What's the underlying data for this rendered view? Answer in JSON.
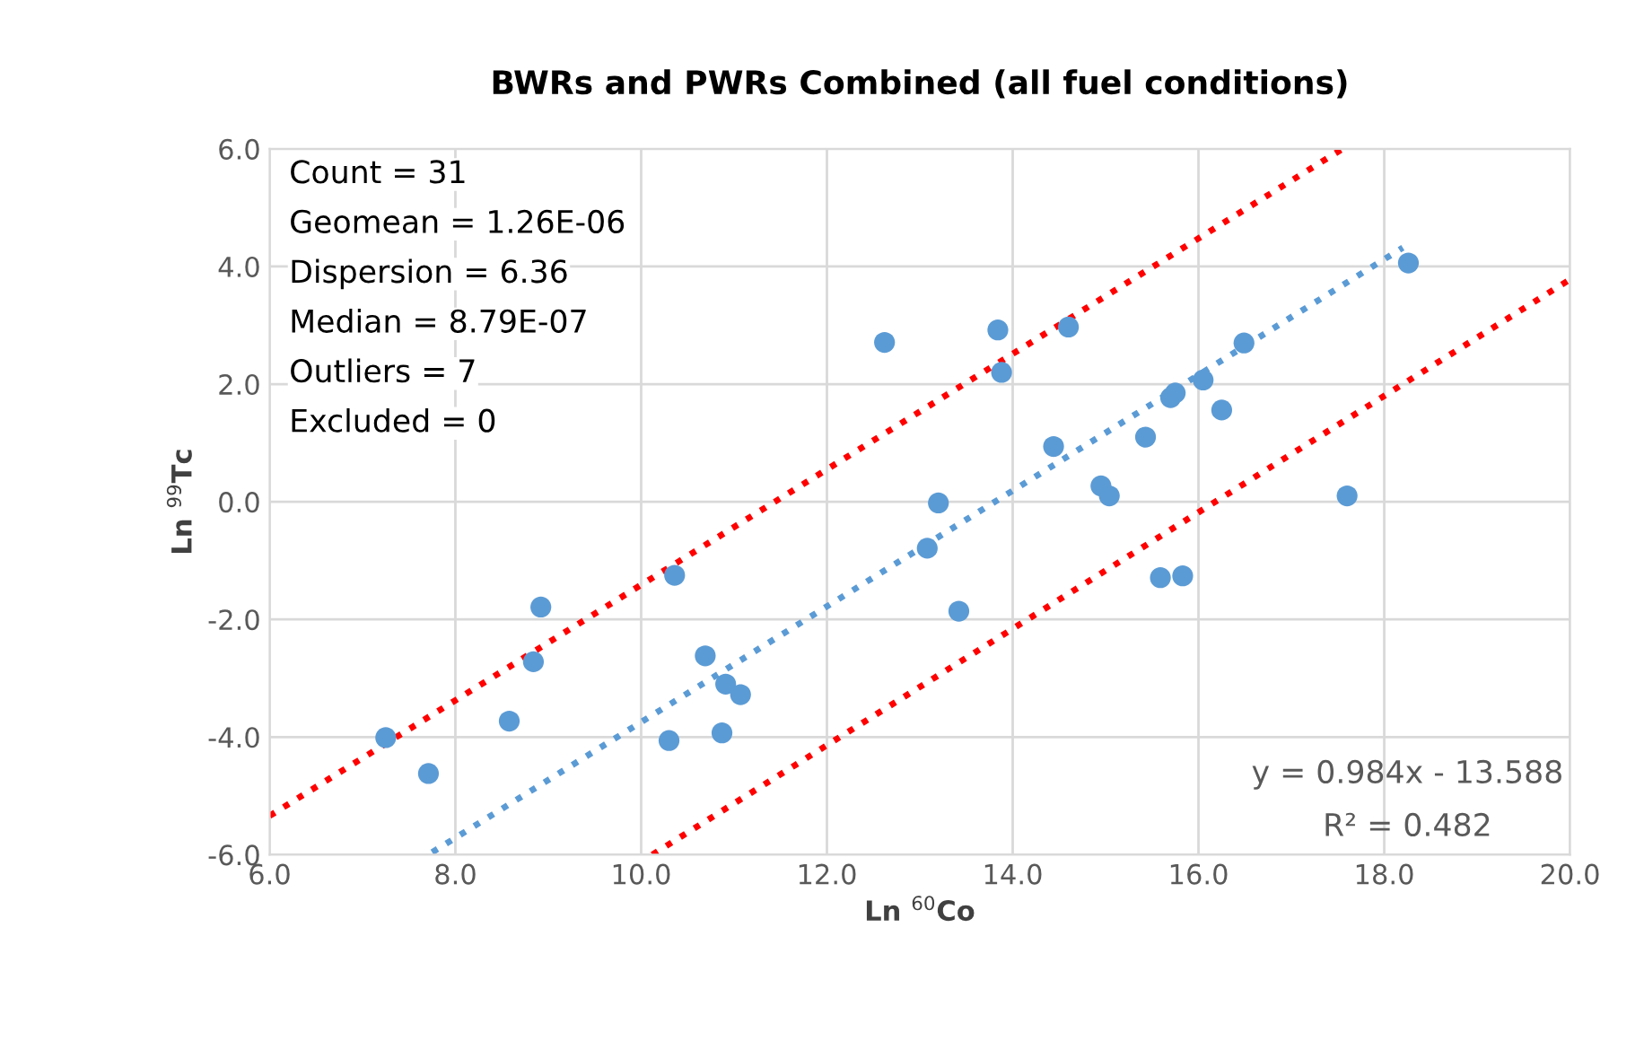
{
  "chart_data": {
    "type": "scatter",
    "title": "BWRs and PWRs Combined (all fuel conditions)",
    "xlabel": "Ln $^{60}$Co",
    "ylabel": "Ln $^{99}$Tc",
    "xlim": [
      6,
      20
    ],
    "ylim": [
      -6,
      6
    ],
    "xticks": [
      {
        "value": 6,
        "label": "6.0"
      },
      {
        "value": 8,
        "label": "8.0"
      },
      {
        "value": 10,
        "label": "10.0"
      },
      {
        "value": 12,
        "label": "12.0"
      },
      {
        "value": 14,
        "label": "14.0"
      },
      {
        "value": 16,
        "label": "16.0"
      },
      {
        "value": 18,
        "label": "18.0"
      },
      {
        "value": 20,
        "label": "20.0"
      }
    ],
    "yticks": [
      {
        "value": 6,
        "label": "6.0"
      },
      {
        "value": 4,
        "label": "4.0"
      },
      {
        "value": 2,
        "label": "2.0"
      },
      {
        "value": 0,
        "label": "0.0"
      },
      {
        "value": -2,
        "label": "-2.0"
      },
      {
        "value": -4,
        "label": "-4.0"
      },
      {
        "value": -6,
        "label": "-6.0"
      }
    ],
    "grid": true,
    "series": [
      {
        "color": "#5b9bd5",
        "marker": "circle",
        "x": [
          12.62,
          13.2,
          13.08,
          13.42,
          10.36,
          8.92,
          8.84,
          10.69,
          10.91,
          11.07,
          8.58,
          7.25,
          7.71,
          10.3,
          10.87,
          13.84,
          13.88,
          14.6,
          14.44,
          14.95,
          15.04,
          15.43,
          15.7,
          15.75,
          16.05,
          16.49,
          16.25,
          15.59,
          15.83,
          17.6,
          18.26
        ],
        "values": [
          2.71,
          -0.02,
          -0.79,
          -1.86,
          -1.25,
          -1.79,
          -2.72,
          -2.62,
          -3.1,
          -3.28,
          -3.73,
          -4.01,
          -4.62,
          -4.06,
          -3.93,
          2.92,
          2.2,
          2.97,
          0.94,
          0.27,
          0.1,
          1.1,
          1.77,
          1.85,
          2.07,
          2.7,
          1.56,
          -1.29,
          -1.26,
          0.1,
          4.06
        ]
      },
      {
        "type": "line",
        "color": "#5b9bd5",
        "marker": "none",
        "line_style": "dotted",
        "x": [
          7.75,
          18.2
        ],
        "values": [
          -5.96,
          4.32
        ]
      },
      {
        "type": "line",
        "color": "#ff0000",
        "marker": "none",
        "line_style": "dotted",
        "x": [
          6,
          17.55
        ],
        "values": [
          -5.34,
          6
        ]
      },
      {
        "type": "line",
        "color": "#ff0000",
        "marker": "none",
        "line_style": "dotted",
        "x": [
          10.12,
          20
        ],
        "values": [
          -6,
          3.78
        ]
      }
    ],
    "annotations": [
      "Count = 31",
      "Geomean = 1.26E-06",
      "Dispersion = 6.36",
      "Median = 8.79E-07",
      "Outliers = 7",
      "Excluded = 0",
      "y = 0.984x - 13.588",
      "R² = 0.482"
    ]
  }
}
